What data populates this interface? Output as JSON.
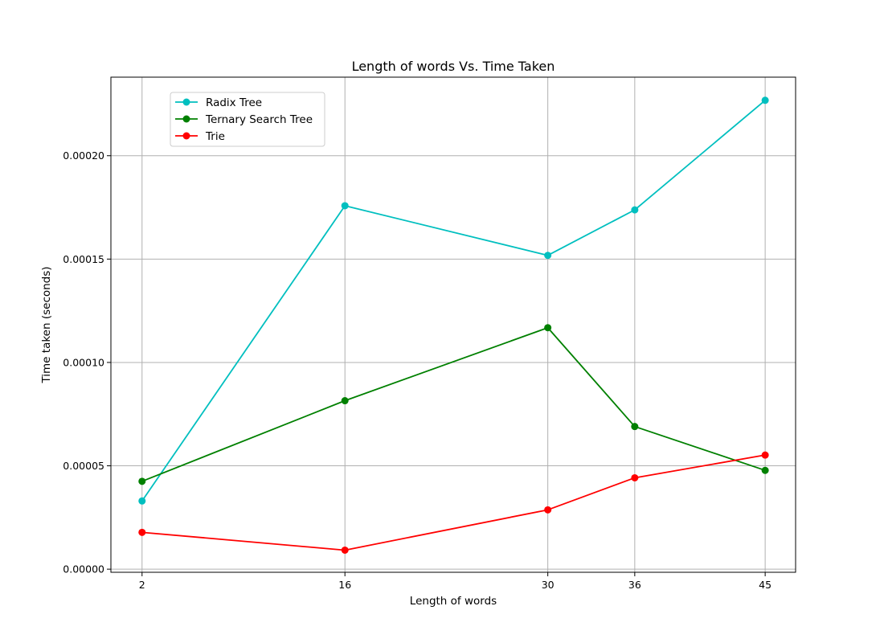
{
  "chart_data": {
    "type": "line",
    "title": "Length of words Vs. Time Taken",
    "xlabel": "Length of words",
    "ylabel": "Time taken (seconds)",
    "x": [
      2,
      16,
      30,
      36,
      45
    ],
    "x_tick_labels": [
      "2",
      "16",
      "30",
      "36",
      "45"
    ],
    "y_ticks": [
      0,
      5e-05,
      0.0001,
      0.00015,
      0.0002
    ],
    "y_tick_labels": [
      "0.00000",
      "0.00005",
      "0.00010",
      "0.00015",
      "0.00020"
    ],
    "xlim": [
      -0.15,
      47.1
    ],
    "ylim": [
      -1.5e-06,
      0.000238
    ],
    "grid": true,
    "legend_position": "upper-left",
    "series": [
      {
        "name": "Radix Tree",
        "color": "#00bfbf",
        "marker": "circle",
        "values": [
          3.3e-05,
          0.0001758,
          0.0001518,
          0.0001738,
          0.0002268
        ]
      },
      {
        "name": "Ternary Search Tree",
        "color": "#008000",
        "marker": "circle",
        "values": [
          4.25e-05,
          8.15e-05,
          0.0001168,
          6.9e-05,
          4.78e-05
        ]
      },
      {
        "name": "Trie",
        "color": "#ff0000",
        "marker": "circle",
        "values": [
          1.78e-05,
          9.2e-06,
          2.87e-05,
          4.42e-05,
          5.52e-05
        ]
      }
    ]
  }
}
